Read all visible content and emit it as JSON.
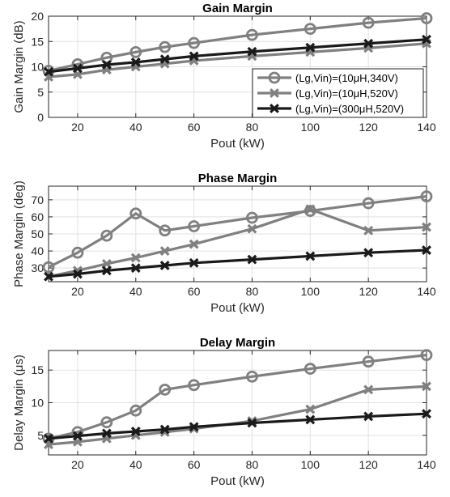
{
  "chart_data": [
    {
      "type": "line",
      "title": "Gain Margin",
      "xlabel": "Pout (kW)",
      "ylabel": "Gain Margin (dB)",
      "xlim": [
        10,
        140
      ],
      "ylim": [
        0,
        20
      ],
      "xticks": [
        20,
        40,
        60,
        80,
        100,
        120,
        140
      ],
      "yticks": [
        0,
        5,
        10,
        15,
        20
      ],
      "grid": true,
      "legend_position": "lower-right",
      "x": [
        10,
        20,
        30,
        40,
        50,
        60,
        80,
        100,
        120,
        140
      ],
      "series": [
        {
          "name": "(Lg,Vin)=(10μH,340V)",
          "marker": "circle",
          "color": "#808080",
          "values": [
            9.2,
            10.5,
            11.8,
            12.9,
            13.9,
            14.7,
            16.3,
            17.5,
            18.7,
            19.6
          ]
        },
        {
          "name": "(Lg,Vin)=(10μH,520V)",
          "marker": "x",
          "color": "#808080",
          "values": [
            8.0,
            8.5,
            9.4,
            10.0,
            10.6,
            11.2,
            12.1,
            12.9,
            13.7,
            14.6
          ]
        },
        {
          "name": "(Lg,Vin)=(300μH,520V)",
          "marker": "x",
          "color": "#1a1a1a",
          "values": [
            9.0,
            9.7,
            10.4,
            10.9,
            11.5,
            12.1,
            13.0,
            13.8,
            14.6,
            15.4
          ]
        }
      ]
    },
    {
      "type": "line",
      "title": "Phase Margin",
      "xlabel": "Pout (kW)",
      "ylabel": "Phase Margin (deg)",
      "xlim": [
        10,
        140
      ],
      "ylim": [
        22,
        78
      ],
      "xticks": [
        20,
        40,
        60,
        80,
        100,
        120,
        140
      ],
      "yticks": [
        30,
        40,
        50,
        60,
        70
      ],
      "grid": true,
      "x": [
        10,
        20,
        30,
        40,
        50,
        60,
        80,
        100,
        120,
        140
      ],
      "series": [
        {
          "marker": "circle",
          "color": "#808080",
          "values": [
            30.5,
            39.0,
            49.0,
            62.0,
            52.0,
            54.5,
            59.5,
            63.5,
            68.0,
            72.0
          ]
        },
        {
          "marker": "x",
          "color": "#808080",
          "values": [
            25.0,
            28.5,
            32.5,
            36.0,
            40.0,
            44.0,
            53.0,
            64.5,
            52.0,
            54.0
          ]
        },
        {
          "marker": "x",
          "color": "#1a1a1a",
          "values": [
            25.0,
            26.5,
            28.5,
            30.0,
            31.5,
            33.0,
            35.0,
            37.0,
            39.0,
            40.5
          ]
        }
      ]
    },
    {
      "type": "line",
      "title": "Delay Margin",
      "xlabel": "Pout (kW)",
      "ylabel": "Delay Margin (μs)",
      "xlim": [
        10,
        140
      ],
      "ylim": [
        2,
        18
      ],
      "xticks": [
        20,
        40,
        60,
        80,
        100,
        120,
        140
      ],
      "yticks": [
        5,
        10,
        15
      ],
      "grid": true,
      "x": [
        10,
        20,
        30,
        40,
        50,
        60,
        80,
        100,
        120,
        140
      ],
      "series": [
        {
          "marker": "circle",
          "color": "#808080",
          "values": [
            4.5,
            5.5,
            7.0,
            8.8,
            12.0,
            12.7,
            14.0,
            15.2,
            16.3,
            17.3
          ]
        },
        {
          "marker": "x",
          "color": "#808080",
          "values": [
            3.6,
            4.0,
            4.5,
            5.0,
            5.5,
            6.0,
            7.2,
            9.0,
            12.0,
            12.5
          ]
        },
        {
          "marker": "x",
          "color": "#1a1a1a",
          "values": [
            4.5,
            4.9,
            5.3,
            5.6,
            5.9,
            6.3,
            6.9,
            7.4,
            7.9,
            8.3
          ]
        }
      ]
    }
  ]
}
